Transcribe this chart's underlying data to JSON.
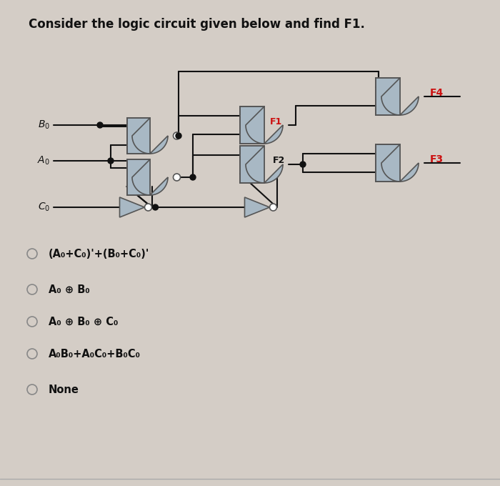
{
  "title": "Consider the logic circuit given below and find F1.",
  "title_fontsize": 12,
  "title_fontweight": "bold",
  "bg_color": "#d4cdc6",
  "gate_color": "#a8b8c4",
  "gate_edge": "#555555",
  "wire_color": "#111111",
  "red_color": "#cc1111",
  "black_color": "#111111",
  "options": [
    "(A₀+C₀)'+(B₀+C₀)'",
    "A₀ ⊕ B₀",
    "A₀ ⊕ B₀ ⊕ C₀",
    "A₀B₀+A₀C₀+B₀C₀",
    "None"
  ]
}
